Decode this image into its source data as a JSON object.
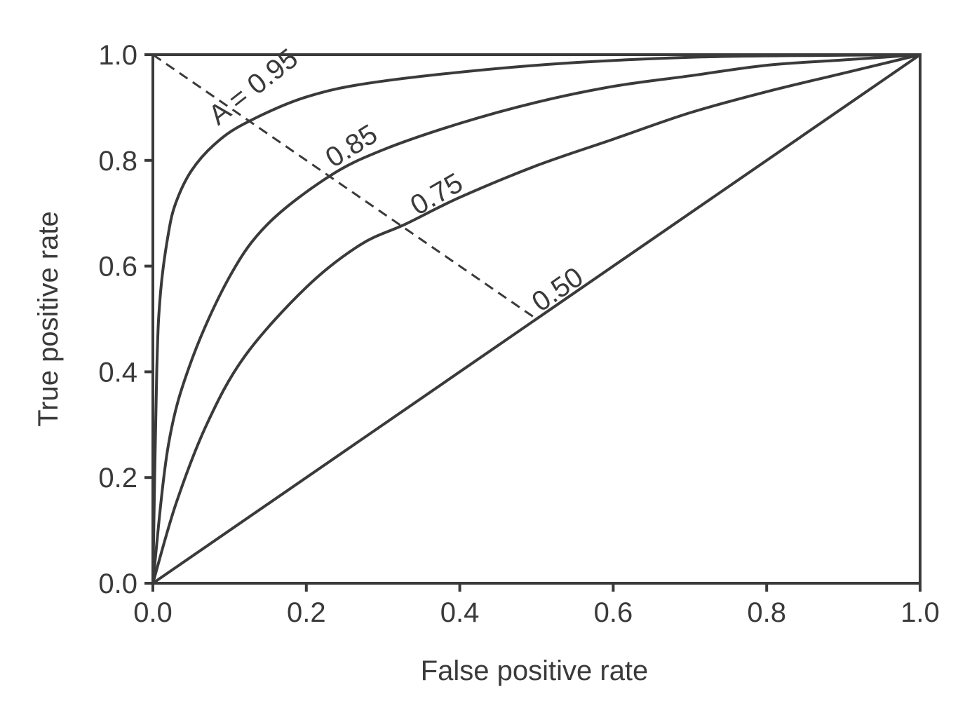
{
  "chart_data": {
    "type": "line",
    "title": "",
    "xlabel": "False positive rate",
    "ylabel": "True positive rate",
    "xlim": [
      0,
      1
    ],
    "ylim": [
      0,
      1
    ],
    "grid": false,
    "x_ticks": [
      "0.0",
      "0.2",
      "0.4",
      "0.6",
      "0.8",
      "1.0"
    ],
    "y_ticks": [
      "0.0",
      "0.2",
      "0.4",
      "0.6",
      "0.8",
      "1.0"
    ],
    "series": [
      {
        "label": "A = 0.95",
        "auc": 0.95,
        "x": [
          0,
          0.005,
          0.01,
          0.02,
          0.03,
          0.05,
          0.08,
          0.12,
          0.2,
          0.3,
          0.5,
          0.7,
          0.9,
          1.0
        ],
        "y": [
          0,
          0.4,
          0.55,
          0.66,
          0.72,
          0.78,
          0.83,
          0.87,
          0.92,
          0.95,
          0.98,
          0.995,
          0.999,
          1.0
        ]
      },
      {
        "label": "0.85",
        "auc": 0.85,
        "x": [
          0,
          0.02,
          0.05,
          0.1,
          0.15,
          0.23,
          0.3,
          0.4,
          0.5,
          0.6,
          0.7,
          0.8,
          0.9,
          1.0
        ],
        "y": [
          0,
          0.26,
          0.42,
          0.58,
          0.68,
          0.77,
          0.82,
          0.87,
          0.91,
          0.94,
          0.96,
          0.98,
          0.99,
          1.0
        ]
      },
      {
        "label": "0.75",
        "auc": 0.75,
        "x": [
          0,
          0.03,
          0.07,
          0.12,
          0.2,
          0.27,
          0.33,
          0.4,
          0.5,
          0.6,
          0.7,
          0.8,
          0.9,
          1.0
        ],
        "y": [
          0,
          0.15,
          0.3,
          0.43,
          0.56,
          0.64,
          0.68,
          0.73,
          0.79,
          0.84,
          0.89,
          0.93,
          0.965,
          1.0
        ]
      },
      {
        "label": "0.50",
        "auc": 0.5,
        "x": [
          0,
          1
        ],
        "y": [
          0,
          1
        ]
      }
    ],
    "reference_line": {
      "style": "dashed",
      "x": [
        0,
        0.5
      ],
      "y": [
        1,
        0.5
      ]
    }
  }
}
